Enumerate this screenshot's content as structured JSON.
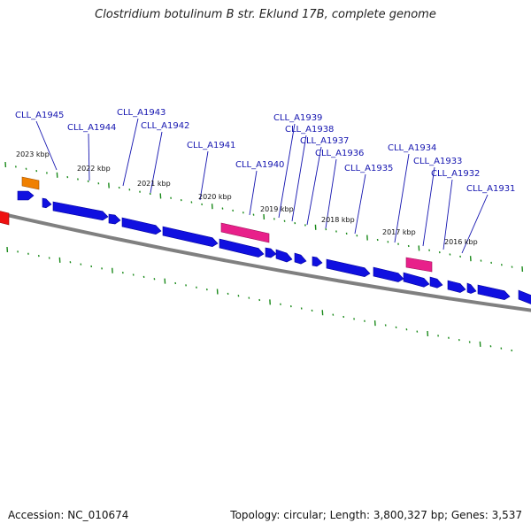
{
  "title": "Clostridium botulinum B str. Eklund 17B, complete genome",
  "footer": {
    "accession_label": "Accession:",
    "accession": "NC_010674",
    "topology_label": "Topology:",
    "topology": "circular",
    "length_label": "Length:",
    "length": "3,800,327 bp",
    "genes_label": "Genes:",
    "genes": "3,537"
  },
  "colors": {
    "cds": "#1010e0",
    "rna_pink": "#e8208a",
    "rna_light": "#f080c0",
    "orange": "#f08000",
    "red": "#ee1010",
    "backbone": "#808080",
    "tick": "#1a8a1a",
    "label": "#1515b0"
  },
  "gene_labels": [
    {
      "name": "CLL_A1945",
      "text": "CLL_A1945"
    },
    {
      "name": "CLL_A1944",
      "text": "CLL_A1944"
    },
    {
      "name": "CLL_A1943",
      "text": "CLL_A1943"
    },
    {
      "name": "CLL_A1942",
      "text": "CLL_A1942"
    },
    {
      "name": "CLL_A1941",
      "text": "CLL_A1941"
    },
    {
      "name": "CLL_A1940",
      "text": "CLL_A1940"
    },
    {
      "name": "CLL_A1939",
      "text": "CLL_A1939"
    },
    {
      "name": "CLL_A1938",
      "text": "CLL_A1938"
    },
    {
      "name": "CLL_A1937",
      "text": "CLL_A1937"
    },
    {
      "name": "CLL_A1936",
      "text": "CLL_A1936"
    },
    {
      "name": "CLL_A1935",
      "text": "CLL_A1935"
    },
    {
      "name": "CLL_A1934",
      "text": "CLL_A1934"
    },
    {
      "name": "CLL_A1933",
      "text": "CLL_A1933"
    },
    {
      "name": "CLL_A1932",
      "text": "CLL_A1932"
    },
    {
      "name": "CLL_A1931",
      "text": "CLL_A1931"
    }
  ],
  "kbp_labels": [
    "2023 kbp",
    "2022 kbp",
    "2021 kbp",
    "2020 kbp",
    "2019 kbp",
    "2018 kbp",
    "2017 kbp",
    "2016 kbp"
  ]
}
